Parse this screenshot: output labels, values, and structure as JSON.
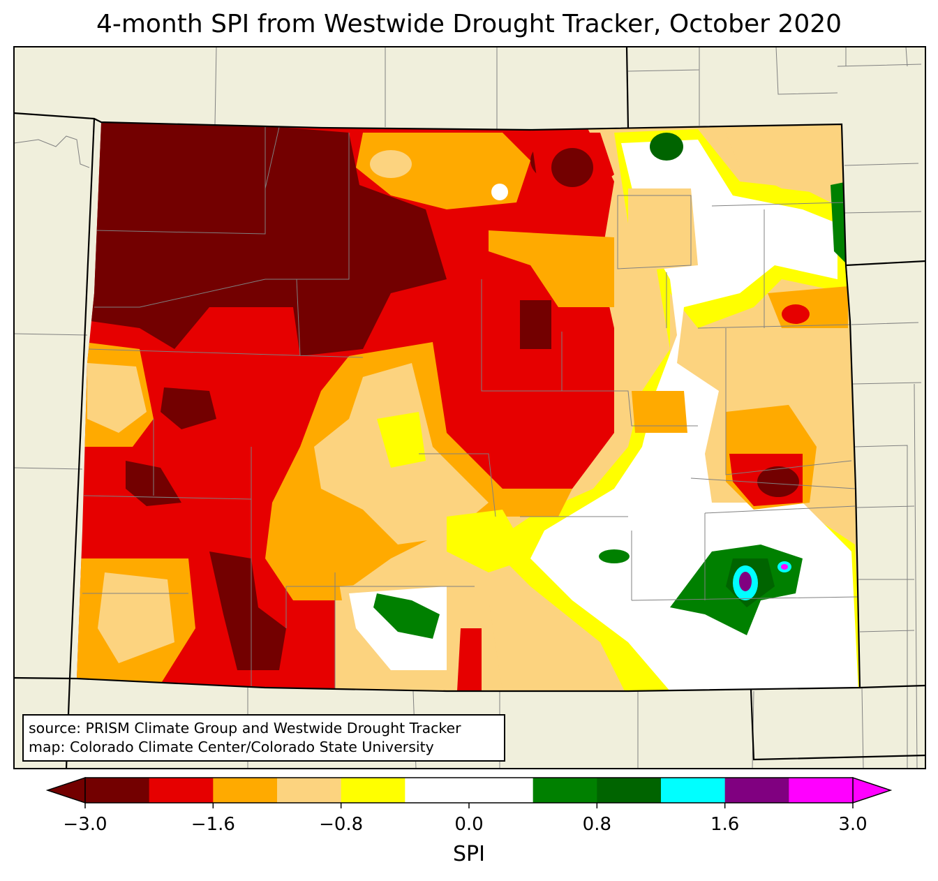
{
  "title": "4-month SPI from Westwide Drought Tracker, October 2020",
  "annotation": {
    "line1": "source: PRISM Climate Group and Westwide Drought Tracker",
    "line2": "map: Colorado Climate Center/Colorado State University"
  },
  "colorbar": {
    "label": "SPI",
    "boundaries": [
      -3.0,
      -2.0,
      -1.6,
      -1.3,
      -0.8,
      -0.5,
      0.0,
      0.5,
      0.8,
      1.3,
      1.6,
      2.0,
      3.0
    ],
    "colors": [
      "#730000",
      "#e60000",
      "#ffaa00",
      "#fcd37f",
      "#ffff00",
      "#ffffff",
      "#ffffff",
      "#008000",
      "#006400",
      "#00ffff",
      "#800080",
      "#ff00ff"
    ],
    "under_color": "#730000",
    "over_color": "#ff00ff",
    "ticks": [
      "−3.0",
      "−1.6",
      "−0.8",
      "0.0",
      "0.8",
      "1.6",
      "3.0"
    ],
    "tick_values": [
      -3.0,
      -1.6,
      -0.8,
      0.0,
      0.8,
      1.6,
      3.0
    ]
  },
  "map": {
    "region": "Colorado",
    "land_color": "#f0efdc",
    "summary": "Driest (SPI below -2.0) in northwest; wetter/near-normal in east and southeast with green pockets"
  }
}
